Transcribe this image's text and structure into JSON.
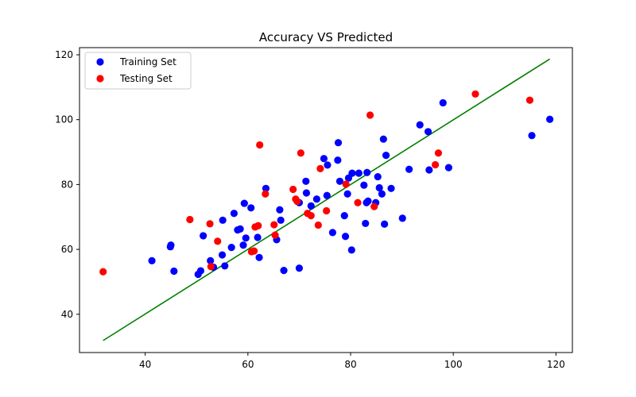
{
  "chart_data": {
    "type": "scatter",
    "title": "Accuracy VS Predicted",
    "xlabel": "",
    "ylabel": "",
    "xlim": [
      27.2,
      123.2
    ],
    "ylim": [
      28.2,
      122.2
    ],
    "xticks": [
      40,
      60,
      80,
      100,
      120
    ],
    "yticks": [
      40,
      60,
      80,
      100,
      120
    ],
    "grid": false,
    "legend_position": "top-left",
    "series": [
      {
        "name": "Training Set",
        "color": "#0000ff",
        "points": [
          [
            41.3,
            56.5
          ],
          [
            44.9,
            60.8
          ],
          [
            45.0,
            61.3
          ],
          [
            45.6,
            53.3
          ],
          [
            50.3,
            52.3
          ],
          [
            50.8,
            53.4
          ],
          [
            51.3,
            64.2
          ],
          [
            52.7,
            56.5
          ],
          [
            53.3,
            54.5
          ],
          [
            55.0,
            58.3
          ],
          [
            55.1,
            69.0
          ],
          [
            55.5,
            54.9
          ],
          [
            56.8,
            60.6
          ],
          [
            57.3,
            71.1
          ],
          [
            58.0,
            66.0
          ],
          [
            58.5,
            66.3
          ],
          [
            59.1,
            61.3
          ],
          [
            59.3,
            74.2
          ],
          [
            59.6,
            63.5
          ],
          [
            60.6,
            72.8
          ],
          [
            61.9,
            63.7
          ],
          [
            62.2,
            57.5
          ],
          [
            63.5,
            78.8
          ],
          [
            65.6,
            63.0
          ],
          [
            66.2,
            72.2
          ],
          [
            66.4,
            69.0
          ],
          [
            67.0,
            53.5
          ],
          [
            70.0,
            54.2
          ],
          [
            70.0,
            74.4
          ],
          [
            71.3,
            81.0
          ],
          [
            71.4,
            77.4
          ],
          [
            72.3,
            73.4
          ],
          [
            73.4,
            75.5
          ],
          [
            74.8,
            88.0
          ],
          [
            75.4,
            76.6
          ],
          [
            75.5,
            86.0
          ],
          [
            76.5,
            65.2
          ],
          [
            77.5,
            87.5
          ],
          [
            77.6,
            92.9
          ],
          [
            77.9,
            81.0
          ],
          [
            78.8,
            70.4
          ],
          [
            79.0,
            64.0
          ],
          [
            79.4,
            77.1
          ],
          [
            79.6,
            82.0
          ],
          [
            80.2,
            59.8
          ],
          [
            80.3,
            83.5
          ],
          [
            81.6,
            83.5
          ],
          [
            82.6,
            79.8
          ],
          [
            82.9,
            68.0
          ],
          [
            83.1,
            74.4
          ],
          [
            83.2,
            83.7
          ],
          [
            83.4,
            74.9
          ],
          [
            84.9,
            74.4
          ],
          [
            85.3,
            82.4
          ],
          [
            85.6,
            79.0
          ],
          [
            86.1,
            77.1
          ],
          [
            86.4,
            94.0
          ],
          [
            86.6,
            67.8
          ],
          [
            86.9,
            89.0
          ],
          [
            87.9,
            78.8
          ],
          [
            90.1,
            69.6
          ],
          [
            91.4,
            84.7
          ],
          [
            93.5,
            98.4
          ],
          [
            95.1,
            96.3
          ],
          [
            95.3,
            84.5
          ],
          [
            98.0,
            105.2
          ],
          [
            99.1,
            85.2
          ],
          [
            115.3,
            95.1
          ],
          [
            118.8,
            100.1
          ]
        ]
      },
      {
        "name": "Testing Set",
        "color": "#ff0000",
        "points": [
          [
            31.8,
            53.1
          ],
          [
            48.7,
            69.2
          ],
          [
            52.6,
            67.9
          ],
          [
            52.8,
            54.7
          ],
          [
            54.1,
            62.5
          ],
          [
            60.7,
            59.3
          ],
          [
            61.2,
            59.5
          ],
          [
            61.4,
            66.9
          ],
          [
            62.0,
            67.3
          ],
          [
            62.3,
            92.2
          ],
          [
            63.4,
            77.1
          ],
          [
            65.1,
            67.6
          ],
          [
            65.3,
            64.4
          ],
          [
            68.8,
            78.5
          ],
          [
            69.3,
            75.5
          ],
          [
            69.6,
            74.8
          ],
          [
            70.3,
            89.7
          ],
          [
            71.6,
            71.1
          ],
          [
            72.3,
            70.4
          ],
          [
            73.7,
            67.5
          ],
          [
            74.1,
            84.9
          ],
          [
            75.3,
            71.9
          ],
          [
            79.1,
            80.1
          ],
          [
            81.4,
            74.4
          ],
          [
            83.8,
            101.4
          ],
          [
            84.6,
            73.2
          ],
          [
            96.5,
            86.1
          ],
          [
            97.1,
            89.7
          ],
          [
            104.3,
            107.9
          ],
          [
            114.9,
            106.0
          ]
        ]
      }
    ],
    "fit_line": {
      "color": "#008000",
      "x": [
        31.8,
        118.8
      ],
      "y": [
        31.9,
        118.7
      ]
    }
  }
}
